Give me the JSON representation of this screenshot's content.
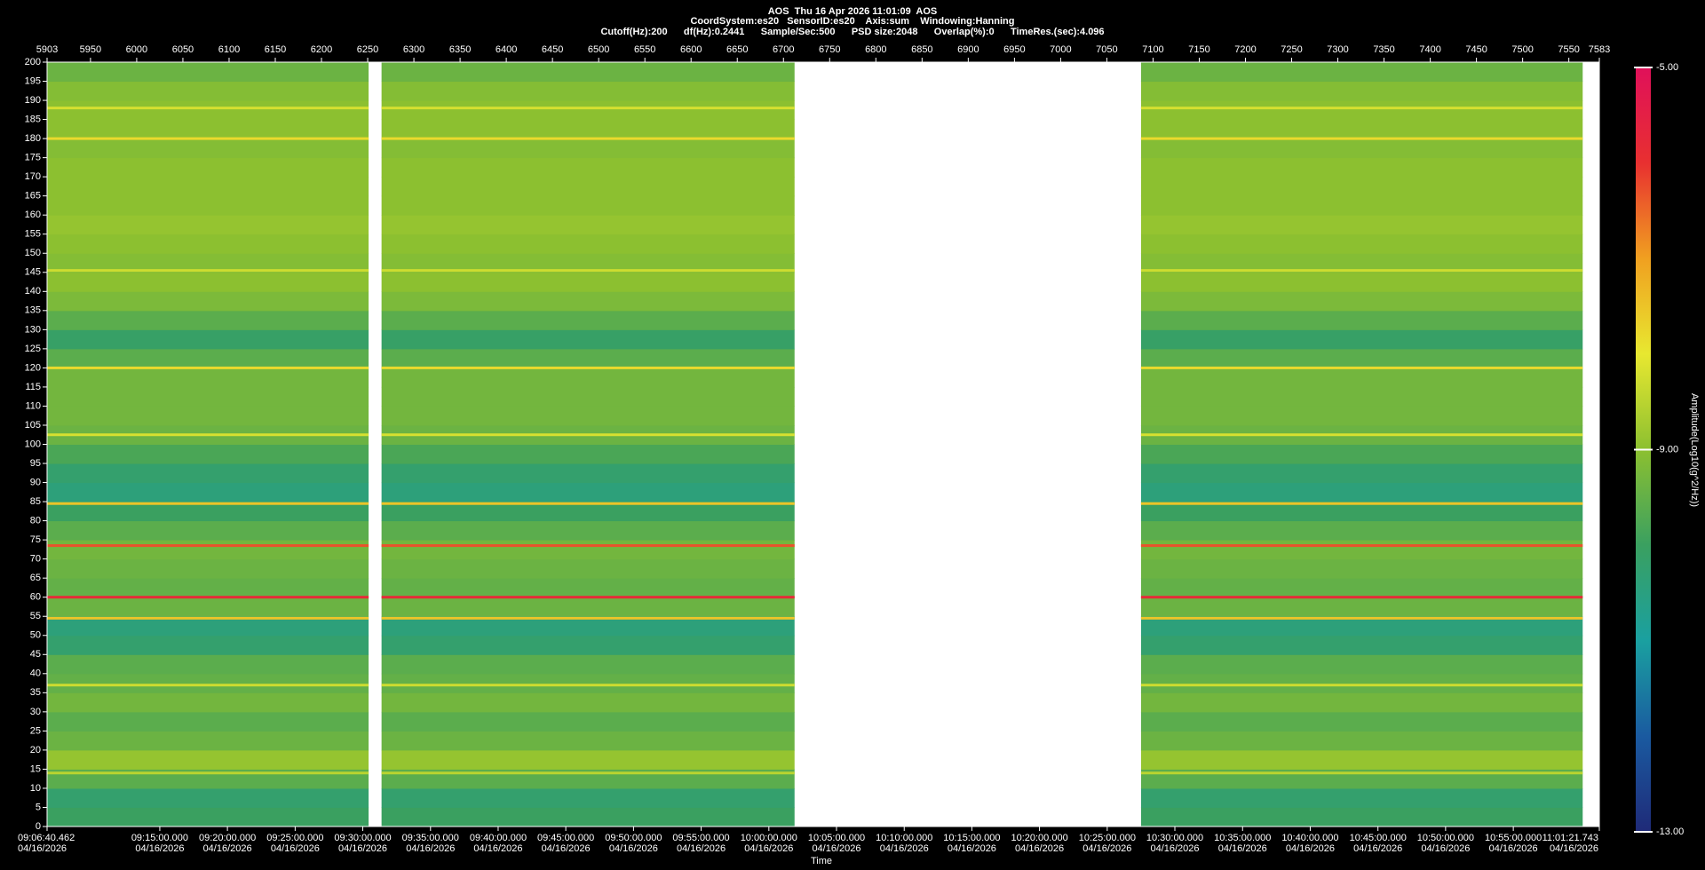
{
  "chart_data": {
    "type": "spectrogram",
    "title": "AOS  Thu 16 Apr 2026 11:01:09  AOS",
    "subtitle": "CoordSystem:es20   SensorID:es20    Axis:sum    Windowing:Hanning",
    "settings_line": "Cutoff(Hz):200      df(Hz):0.2441      Sample/Sec:500      PSD size:2048      Overlap(%):0      TimeRes.(sec):4.096",
    "x_label": "Time",
    "colorbar_label": "Amplitude(Log10(g^2/Hz))",
    "xlim": [
      5903,
      7583
    ],
    "xticks": [
      5903,
      5950,
      6000,
      6050,
      6100,
      6150,
      6200,
      6250,
      6300,
      6350,
      6400,
      6450,
      6500,
      6550,
      6600,
      6650,
      6700,
      6750,
      6800,
      6850,
      6900,
      6950,
      7000,
      7050,
      7100,
      7150,
      7200,
      7250,
      7300,
      7350,
      7400,
      7450,
      7500,
      7550,
      7583
    ],
    "time_ticks": [
      {
        "value": 5903,
        "label": "09:06:40.462\n04/16/2026"
      },
      {
        "value": 6025.0,
        "label": "09:15:00.000\n04/16/2026"
      },
      {
        "value": 6098.2,
        "label": "09:20:00.000\n04/16/2026"
      },
      {
        "value": 6171.5,
        "label": "09:25:00.000\n04/16/2026"
      },
      {
        "value": 6244.7,
        "label": "09:30:00.000\n04/16/2026"
      },
      {
        "value": 6318.0,
        "label": "09:35:00.000\n04/16/2026"
      },
      {
        "value": 6391.2,
        "label": "09:40:00.000\n04/16/2026"
      },
      {
        "value": 6464.4,
        "label": "09:45:00.000\n04/16/2026"
      },
      {
        "value": 6537.7,
        "label": "09:50:00.000\n04/16/2026"
      },
      {
        "value": 6610.9,
        "label": "09:55:00.000\n04/16/2026"
      },
      {
        "value": 6684.2,
        "label": "10:00:00.000\n04/16/2026"
      },
      {
        "value": 6757.4,
        "label": "10:05:00.000\n04/16/2026"
      },
      {
        "value": 6830.7,
        "label": "10:10:00.000\n04/16/2026"
      },
      {
        "value": 6903.9,
        "label": "10:15:00.000\n04/16/2026"
      },
      {
        "value": 6977.1,
        "label": "10:20:00.000\n04/16/2026"
      },
      {
        "value": 7050.4,
        "label": "10:25:00.000\n04/16/2026"
      },
      {
        "value": 7123.6,
        "label": "10:30:00.000\n04/16/2026"
      },
      {
        "value": 7196.9,
        "label": "10:35:00.000\n04/16/2026"
      },
      {
        "value": 7270.1,
        "label": "10:40:00.000\n04/16/2026"
      },
      {
        "value": 7343.4,
        "label": "10:45:00.000\n04/16/2026"
      },
      {
        "value": 7416.6,
        "label": "10:50:00.000\n04/16/2026"
      },
      {
        "value": 7489.9,
        "label": "10:55:00.000\n04/16/2026"
      },
      {
        "value": 7583,
        "label": "11:01:21.743\n04/16/2026"
      }
    ],
    "ylim": [
      0,
      200
    ],
    "yticks": [
      0,
      5,
      10,
      15,
      20,
      25,
      30,
      35,
      40,
      45,
      50,
      55,
      60,
      65,
      70,
      75,
      80,
      85,
      90,
      95,
      100,
      105,
      110,
      115,
      120,
      125,
      130,
      135,
      140,
      145,
      150,
      155,
      160,
      165,
      170,
      175,
      180,
      185,
      190,
      195,
      200
    ],
    "segments": [
      [
        5903,
        6251
      ],
      [
        6265,
        6712
      ],
      [
        7087,
        7565
      ]
    ],
    "frequency_bins": [
      0,
      5,
      10,
      15,
      20,
      25,
      30,
      35,
      40,
      45,
      50,
      55,
      60,
      65,
      70,
      75,
      80,
      85,
      90,
      95,
      100,
      105,
      110,
      115,
      120,
      125,
      130,
      135,
      140,
      145,
      150,
      155,
      160,
      165,
      170,
      175,
      180,
      185,
      190,
      195,
      200
    ],
    "amplitude": [
      -10.0,
      -10.2,
      -9.6,
      -8.9,
      -9.4,
      -9.6,
      -9.3,
      -9.5,
      -9.6,
      -10.2,
      -10.4,
      -9.4,
      -9.5,
      -9.4,
      -9.3,
      -9.6,
      -10.0,
      -10.4,
      -10.2,
      -9.8,
      -9.4,
      -9.3,
      -9.3,
      -9.3,
      -9.6,
      -10.1,
      -9.6,
      -9.2,
      -9.0,
      -9.1,
      -9.0,
      -8.9,
      -9.0,
      -9.0,
      -9.0,
      -9.1,
      -9.0,
      -9.0,
      -9.1,
      -9.4
    ],
    "lines": [
      {
        "frequency": 60,
        "amplitude": -5.8
      },
      {
        "frequency": 73.5,
        "amplitude": -6.3
      },
      {
        "frequency": 54.5,
        "amplitude": -7.5
      },
      {
        "frequency": 84.5,
        "amplitude": -7.5
      },
      {
        "frequency": 180,
        "amplitude": -7.8
      },
      {
        "frequency": 120,
        "amplitude": -7.8
      },
      {
        "frequency": 102.5,
        "amplitude": -8.2
      },
      {
        "frequency": 145.5,
        "amplitude": -8.3
      },
      {
        "frequency": 188,
        "amplitude": -8.2
      },
      {
        "frequency": 37,
        "amplitude": -8.3
      },
      {
        "frequency": 14,
        "amplitude": -8.5
      }
    ],
    "clim": [
      -13,
      -5
    ],
    "cticks": [
      {
        "value": -5,
        "label": "-5.00"
      },
      {
        "value": -9,
        "label": "-9.00"
      },
      {
        "value": -13,
        "label": "-13.00"
      }
    ],
    "colormap": [
      "#1f2a78",
      "#1a5aa0",
      "#1aa0a0",
      "#3aa060",
      "#8cc030",
      "#e8e830",
      "#f0a020",
      "#e83030",
      "#e0105a"
    ]
  }
}
